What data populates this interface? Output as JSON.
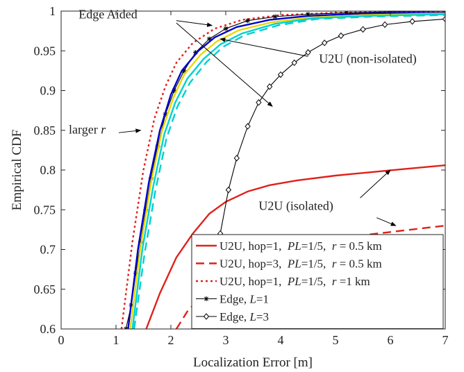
{
  "chart_data": {
    "type": "line",
    "xlabel": "Localization Error [m]",
    "ylabel": "Empirical CDF",
    "xlim": [
      0,
      7
    ],
    "ylim": [
      0.6,
      1
    ],
    "xticks": [
      "0",
      "1",
      "2",
      "3",
      "4",
      "5",
      "6",
      "7"
    ],
    "yticks": [
      "0.6",
      "0.65",
      "0.7",
      "0.75",
      "0.8",
      "0.85",
      "0.9",
      "0.95",
      "1"
    ],
    "grid": false,
    "legend_position": "bottom-right",
    "legend": [
      {
        "text": "U2U, hop=1,  PL=1/5,  r = 0.5 km",
        "color": "#e0201a",
        "style": "solid"
      },
      {
        "text": "U2U, hop=3,  PL=1/5,  r = 0.5 km",
        "color": "#e0201a",
        "style": "dashed"
      },
      {
        "text": "U2U, hop=1,  PL=1/5,  r =1 km",
        "color": "#e0201a",
        "style": "dotted"
      },
      {
        "text": "Edge, L=1",
        "color": "#000000",
        "style": "solid",
        "marker": "asterisk"
      },
      {
        "text": "Edge, L=3",
        "color": "#000000",
        "style": "solid",
        "marker": "diamond"
      }
    ],
    "series": [
      {
        "color": "#e0201a",
        "style": "solid",
        "x": [
          1.55,
          1.8,
          2.1,
          2.4,
          2.7,
          3.0,
          3.4,
          3.8,
          4.3,
          5.0,
          5.6,
          6.2,
          7.0
        ],
        "y": [
          0.6,
          0.645,
          0.69,
          0.72,
          0.745,
          0.76,
          0.773,
          0.781,
          0.787,
          0.793,
          0.797,
          0.801,
          0.806
        ]
      },
      {
        "color": "#e0201a",
        "style": "dashed",
        "x": [
          2.1,
          2.3,
          2.6,
          3.0,
          3.5,
          4.0,
          4.5,
          5.0,
          5.5,
          6.0,
          6.5,
          7.0
        ],
        "y": [
          0.6,
          0.622,
          0.645,
          0.668,
          0.685,
          0.697,
          0.706,
          0.713,
          0.718,
          0.722,
          0.726,
          0.73
        ]
      },
      {
        "color": "#e0201a",
        "style": "dotted",
        "x": [
          1.1,
          1.3,
          1.5,
          1.7,
          1.9,
          2.1,
          2.4,
          2.8,
          3.3,
          4.0,
          5.0,
          6.0,
          7.0
        ],
        "y": [
          0.6,
          0.71,
          0.8,
          0.865,
          0.905,
          0.935,
          0.96,
          0.978,
          0.989,
          0.995,
          0.998,
          0.999,
          1.0
        ]
      },
      {
        "color": "#000000",
        "style": "solid",
        "marker": "asterisk",
        "x": [
          1.18,
          1.28,
          1.36,
          1.45,
          1.54,
          1.64,
          1.76,
          1.9,
          2.06,
          2.24,
          2.45,
          2.7,
          3.0,
          3.4,
          3.9,
          4.5,
          5.2,
          6.0,
          7.0
        ],
        "y": [
          0.6,
          0.63,
          0.67,
          0.71,
          0.75,
          0.79,
          0.83,
          0.87,
          0.9,
          0.925,
          0.948,
          0.965,
          0.978,
          0.988,
          0.993,
          0.996,
          0.998,
          0.999,
          1.0
        ]
      },
      {
        "color": "#000000",
        "style": "solid",
        "marker": "diamond",
        "x": [
          2.62,
          2.75,
          2.9,
          3.05,
          3.2,
          3.4,
          3.6,
          3.8,
          4.0,
          4.25,
          4.5,
          4.8,
          5.1,
          5.5,
          5.9,
          6.4,
          7.0
        ],
        "y": [
          0.6,
          0.66,
          0.72,
          0.775,
          0.815,
          0.855,
          0.885,
          0.905,
          0.92,
          0.935,
          0.948,
          0.96,
          0.969,
          0.977,
          0.983,
          0.987,
          0.99
        ]
      },
      {
        "color": "#0000cc",
        "style": "solid",
        "x": [
          1.22,
          1.4,
          1.6,
          1.8,
          2.0,
          2.2,
          2.5,
          2.8,
          3.2,
          3.8,
          4.5,
          5.5,
          7.0
        ],
        "y": [
          0.6,
          0.7,
          0.785,
          0.85,
          0.895,
          0.925,
          0.95,
          0.967,
          0.98,
          0.989,
          0.994,
          0.997,
          0.998
        ]
      },
      {
        "color": "#e8d800",
        "style": "solid",
        "x": [
          1.26,
          1.44,
          1.64,
          1.84,
          2.04,
          2.24,
          2.54,
          2.84,
          3.24,
          3.84,
          4.54,
          5.54,
          7.0
        ],
        "y": [
          0.6,
          0.7,
          0.785,
          0.85,
          0.89,
          0.92,
          0.945,
          0.962,
          0.976,
          0.986,
          0.992,
          0.995,
          0.997
        ]
      },
      {
        "color": "#00d0d0",
        "style": "solid",
        "x": [
          1.3,
          1.48,
          1.68,
          1.88,
          2.08,
          2.3,
          2.6,
          2.9,
          3.3,
          3.9,
          4.6,
          5.6,
          7.0
        ],
        "y": [
          0.6,
          0.7,
          0.78,
          0.845,
          0.885,
          0.915,
          0.94,
          0.958,
          0.972,
          0.984,
          0.991,
          0.994,
          0.996
        ]
      },
      {
        "color": "#00d0d0",
        "style": "dashed",
        "x": [
          1.33,
          1.52,
          1.72,
          1.92,
          2.12,
          2.35,
          2.65,
          2.95,
          3.35,
          3.95,
          4.65,
          5.65,
          7.0
        ],
        "y": [
          0.6,
          0.695,
          0.775,
          0.84,
          0.88,
          0.91,
          0.936,
          0.955,
          0.97,
          0.982,
          0.99,
          0.993,
          0.995
        ]
      }
    ],
    "annotations": [
      {
        "text": "Edge Aided",
        "x": 0.32,
        "y": 0.991,
        "arrows": [
          [
            2.1,
            0.988,
            2.75,
            0.982
          ],
          [
            2.1,
            0.985,
            3.85,
            0.88
          ]
        ]
      },
      {
        "text": "U2U (non-isolated)",
        "x": 4.7,
        "y": 0.935,
        "arrows": [
          [
            4.5,
            0.943,
            2.9,
            0.965
          ]
        ]
      },
      {
        "text": "larger r",
        "x": 0.14,
        "y": 0.846,
        "arrows": [
          [
            1.05,
            0.847,
            1.45,
            0.85
          ]
        ]
      },
      {
        "text": "U2U (isolated)",
        "x": 3.6,
        "y": 0.75,
        "arrows": [
          [
            5.45,
            0.765,
            6.0,
            0.8
          ],
          [
            5.75,
            0.74,
            6.1,
            0.73
          ]
        ]
      }
    ]
  }
}
